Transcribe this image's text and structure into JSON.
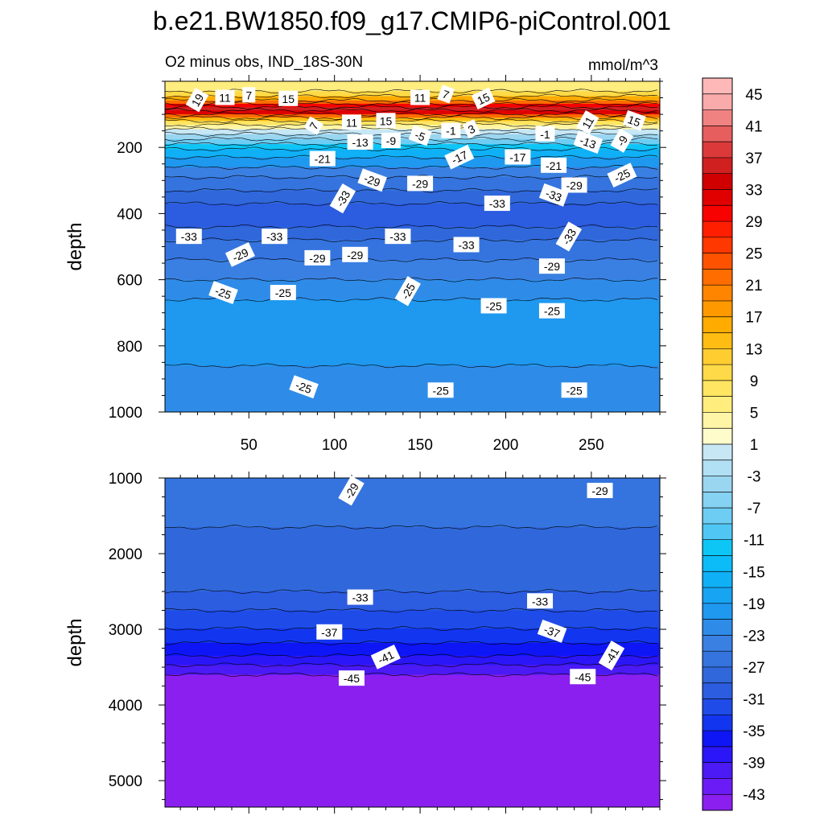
{
  "title": "b.e21.BW1850.f09_g17.CMIP6-piControl.001",
  "chart_data": {
    "type": "heatmap",
    "subtitle": "O2 minus obs, IND_18S-30N",
    "units": "mmol/m^3",
    "x_range": [
      1,
      290
    ],
    "x_ticks": [
      "50",
      "100",
      "150",
      "200",
      "250"
    ],
    "x_tick_values": [
      50,
      100,
      150,
      200,
      250
    ],
    "ylabel": "depth",
    "panels": [
      {
        "name": "upper",
        "y_range": [
          0,
          1000
        ],
        "y_ticks": [
          "200",
          "400",
          "600",
          "800",
          "1000"
        ],
        "y_tick_values": [
          200,
          400,
          600,
          800,
          1000
        ],
        "layers": [
          {
            "to": 30,
            "value": 3
          },
          {
            "to": 45,
            "value": 7
          },
          {
            "to": 58,
            "value": 13
          },
          {
            "to": 68,
            "value": 19
          },
          {
            "to": 78,
            "value": 27
          },
          {
            "to": 88,
            "value": 33
          },
          {
            "to": 100,
            "value": 29
          },
          {
            "to": 110,
            "value": 19
          },
          {
            "to": 120,
            "value": 11
          },
          {
            "to": 132,
            "value": 5
          },
          {
            "to": 145,
            "value": 1
          },
          {
            "to": 160,
            "value": -3
          },
          {
            "to": 175,
            "value": -7
          },
          {
            "to": 190,
            "value": -11
          },
          {
            "to": 205,
            "value": -15
          },
          {
            "to": 230,
            "value": -19
          },
          {
            "to": 260,
            "value": -23
          },
          {
            "to": 290,
            "value": -27
          },
          {
            "to": 330,
            "value": -29
          },
          {
            "to": 370,
            "value": -31
          },
          {
            "to": 440,
            "value": -33
          },
          {
            "to": 480,
            "value": -31
          },
          {
            "to": 540,
            "value": -29
          },
          {
            "to": 600,
            "value": -27
          },
          {
            "to": 660,
            "value": -25
          },
          {
            "to": 860,
            "value": -23
          },
          {
            "to": 1000,
            "value": -25
          }
        ],
        "contour_labels": [
          {
            "text": "19",
            "x": 20,
            "y": 57
          },
          {
            "text": "11",
            "x": 36,
            "y": 50
          },
          {
            "text": "7",
            "x": 50,
            "y": 42
          },
          {
            "text": "15",
            "x": 73,
            "y": 53
          },
          {
            "text": "11",
            "x": 150,
            "y": 50
          },
          {
            "text": "7",
            "x": 165,
            "y": 40
          },
          {
            "text": "15",
            "x": 187,
            "y": 53
          },
          {
            "text": "7",
            "x": 88,
            "y": 135
          },
          {
            "text": "11",
            "x": 110,
            "y": 125
          },
          {
            "text": "15",
            "x": 130,
            "y": 120
          },
          {
            "text": "-5",
            "x": 150,
            "y": 165
          },
          {
            "text": "-1",
            "x": 168,
            "y": 150
          },
          {
            "text": "3",
            "x": 180,
            "y": 145
          },
          {
            "text": "-1",
            "x": 223,
            "y": 160
          },
          {
            "text": "11",
            "x": 248,
            "y": 125
          },
          {
            "text": "15",
            "x": 275,
            "y": 120
          },
          {
            "text": "-13",
            "x": 115,
            "y": 185
          },
          {
            "text": "-9",
            "x": 133,
            "y": 180
          },
          {
            "text": "-17",
            "x": 173,
            "y": 230
          },
          {
            "text": "-17",
            "x": 207,
            "y": 230
          },
          {
            "text": "-13",
            "x": 248,
            "y": 185
          },
          {
            "text": "-9",
            "x": 268,
            "y": 180
          },
          {
            "text": "-21",
            "x": 93,
            "y": 235
          },
          {
            "text": "-21",
            "x": 228,
            "y": 255
          },
          {
            "text": "-25",
            "x": 268,
            "y": 285
          },
          {
            "text": "-29",
            "x": 122,
            "y": 300
          },
          {
            "text": "-29",
            "x": 150,
            "y": 310
          },
          {
            "text": "-29",
            "x": 240,
            "y": 315
          },
          {
            "text": "-33",
            "x": 105,
            "y": 355
          },
          {
            "text": "-33",
            "x": 195,
            "y": 370
          },
          {
            "text": "-33",
            "x": 228,
            "y": 345
          },
          {
            "text": "-33",
            "x": 15,
            "y": 470
          },
          {
            "text": "-33",
            "x": 65,
            "y": 470
          },
          {
            "text": "-33",
            "x": 137,
            "y": 470
          },
          {
            "text": "-33",
            "x": 177,
            "y": 495
          },
          {
            "text": "-33",
            "x": 237,
            "y": 470
          },
          {
            "text": "-29",
            "x": 45,
            "y": 525
          },
          {
            "text": "-29",
            "x": 90,
            "y": 535
          },
          {
            "text": "-29",
            "x": 112,
            "y": 525
          },
          {
            "text": "-29",
            "x": 227,
            "y": 560
          },
          {
            "text": "-25",
            "x": 35,
            "y": 640
          },
          {
            "text": "-25",
            "x": 70,
            "y": 640
          },
          {
            "text": "-25",
            "x": 143,
            "y": 635
          },
          {
            "text": "-25",
            "x": 193,
            "y": 680
          },
          {
            "text": "-25",
            "x": 227,
            "y": 695
          },
          {
            "text": "-25",
            "x": 82,
            "y": 925
          },
          {
            "text": "-25",
            "x": 162,
            "y": 935
          },
          {
            "text": "-25",
            "x": 240,
            "y": 935
          }
        ]
      },
      {
        "name": "lower",
        "y_range": [
          1000,
          5350
        ],
        "y_ticks": [
          "1000",
          "2000",
          "3000",
          "4000",
          "5000"
        ],
        "y_tick_values": [
          1000,
          2000,
          3000,
          4000,
          5000
        ],
        "layers": [
          {
            "to": 1650,
            "value": -29
          },
          {
            "to": 2500,
            "value": -31
          },
          {
            "to": 2750,
            "value": -33
          },
          {
            "to": 2990,
            "value": -35
          },
          {
            "to": 3180,
            "value": -37
          },
          {
            "to": 3350,
            "value": -39
          },
          {
            "to": 3470,
            "value": -41
          },
          {
            "to": 3600,
            "value": -43
          },
          {
            "to": 5350,
            "value": -47
          }
        ],
        "contour_labels": [
          {
            "text": "-29",
            "x": 110,
            "y": 1170
          },
          {
            "text": "-29",
            "x": 255,
            "y": 1170
          },
          {
            "text": "-33",
            "x": 115,
            "y": 2580
          },
          {
            "text": "-33",
            "x": 220,
            "y": 2630
          },
          {
            "text": "-37",
            "x": 97,
            "y": 3040
          },
          {
            "text": "-37",
            "x": 227,
            "y": 3030
          },
          {
            "text": "-41",
            "x": 130,
            "y": 3370
          },
          {
            "text": "-41",
            "x": 262,
            "y": 3350
          },
          {
            "text": "-45",
            "x": 110,
            "y": 3650
          },
          {
            "text": "-45",
            "x": 245,
            "y": 3630
          }
        ]
      }
    ],
    "colorbar": {
      "levels": [
        -45,
        -43,
        -41,
        -39,
        -37,
        -35,
        -33,
        -31,
        -29,
        -27,
        -25,
        -23,
        -21,
        -19,
        -17,
        -15,
        -13,
        -11,
        -9,
        -7,
        -5,
        -3,
        -1,
        1,
        3,
        5,
        7,
        9,
        11,
        13,
        15,
        17,
        19,
        21,
        23,
        25,
        27,
        29,
        31,
        33,
        35,
        37,
        39,
        41,
        43,
        45
      ],
      "tick_labels": [
        "45",
        "41",
        "37",
        "33",
        "29",
        "25",
        "21",
        "17",
        "13",
        "9",
        "5",
        "1",
        "-3",
        "-7",
        "-11",
        "-15",
        "-19",
        "-23",
        "-27",
        "-31",
        "-35",
        "-39",
        "-43"
      ],
      "colors": [
        "#8a1fef",
        "#6b1cf6",
        "#4b1af4",
        "#2b16f7",
        "#0e16f6",
        "#1236ef",
        "#1f4ce8",
        "#2c5ce0",
        "#3068db",
        "#3574de",
        "#3a80e2",
        "#2e8ce8",
        "#1f98ef",
        "#17a4f3",
        "#10b0f6",
        "#0bbcf8",
        "#0ec6f6",
        "#4fc6f4",
        "#6ecdf3",
        "#86d2f2",
        "#9bd6f1",
        "#b1dff3",
        "#c7e7f5",
        "#fffccc",
        "#fff5a6",
        "#ffed7e",
        "#ffe562",
        "#ffda48",
        "#ffcd30",
        "#ffbc12",
        "#ffab00",
        "#ff9900",
        "#ff8500",
        "#ff6d00",
        "#ff5200",
        "#ff3800",
        "#ff1e00",
        "#f70200",
        "#e00000",
        "#d00000",
        "#d02020",
        "#dc3a3a",
        "#e65e5e",
        "#f08282",
        "#f9aaaa",
        "#ffb8b8"
      ]
    }
  }
}
